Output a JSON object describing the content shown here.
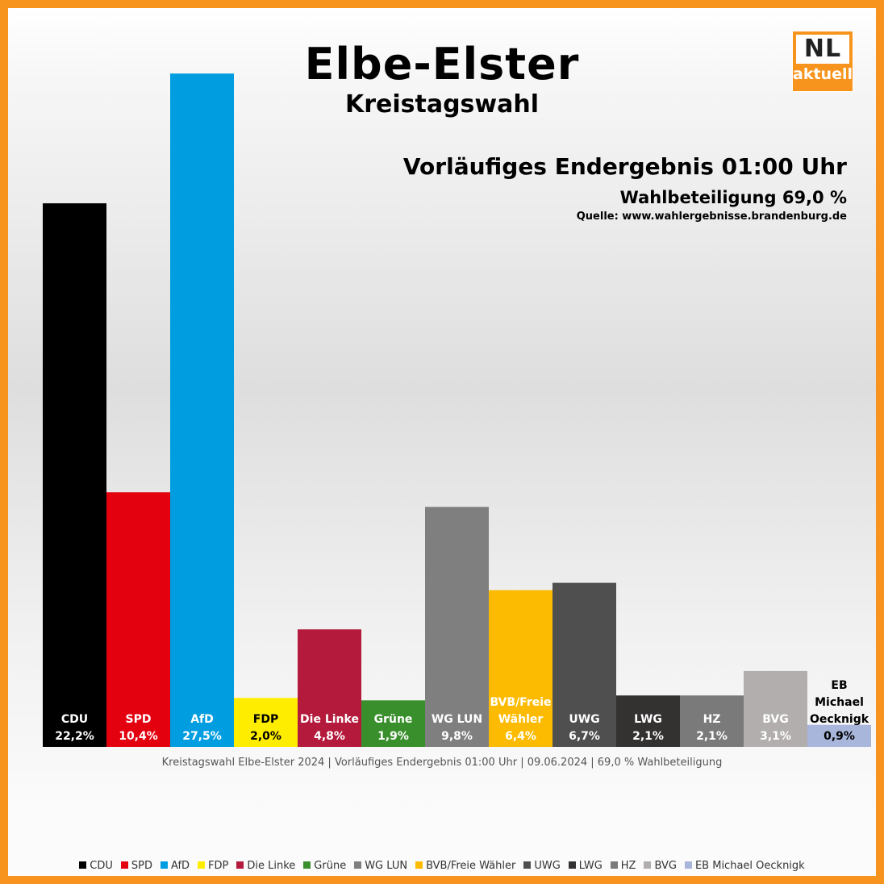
{
  "header": {
    "title": "Elbe-Elster",
    "subtitle": "Kreistagswahl",
    "result_title": "Vorläufiges Endergebnis 01:00 Uhr",
    "turnout": "Wahlbeteiligung 69,0 %",
    "source": "Quelle:  www.wahlergebnisse.brandenburg.de"
  },
  "logo": {
    "top": "NL",
    "bottom": "aktuell"
  },
  "footnote": "Kreistagswahl Elbe-Elster 2024 | Vorläufiges Endergebnis 01:00 Uhr | 09.06.2024 | 69,0 % Wahlbeteiligung",
  "chart_data": {
    "type": "bar",
    "title": "Elbe-Elster",
    "subtitle": "Kreistagswahl",
    "categories": [
      "CDU",
      "SPD",
      "AfD",
      "FDP",
      "Die Linke",
      "Grüne",
      "WG LUN",
      "BVB/Freie Wähler",
      "UWG",
      "LWG",
      "HZ",
      "BVG",
      "EB Michael Oecknigk"
    ],
    "values": [
      22.2,
      10.4,
      27.5,
      2.0,
      4.8,
      1.9,
      9.8,
      6.4,
      6.7,
      2.1,
      2.1,
      3.1,
      0.9
    ],
    "value_labels": [
      "22,2%",
      "10,4%",
      "27,5%",
      "2,0%",
      "4,8%",
      "1,9%",
      "9,8%",
      "6,4%",
      "6,7%",
      "2,1%",
      "2,1%",
      "3,1%",
      "0,9%"
    ],
    "bar_label_lines": [
      [
        "CDU"
      ],
      [
        "SPD"
      ],
      [
        "AfD"
      ],
      [
        "FDP"
      ],
      [
        "Die Linke"
      ],
      [
        "Grüne"
      ],
      [
        "WG LUN"
      ],
      [
        "BVB/Freie",
        "Wähler"
      ],
      [
        "UWG"
      ],
      [
        "LWG"
      ],
      [
        "HZ"
      ],
      [
        "BVG"
      ],
      [
        "EB",
        "Michael",
        "Oecknigk"
      ]
    ],
    "colors": [
      "#000000",
      "#E3000F",
      "#009EE0",
      "#FFED00",
      "#B41A3B",
      "#3A8F2D",
      "#7F7F7F",
      "#FCBB00",
      "#4F4F4F",
      "#343131",
      "#7A7A7A",
      "#B2AEAE",
      "#A9B6DC"
    ],
    "label_colors": [
      "#FFFFFF",
      "#FFFFFF",
      "#FFFFFF",
      "#000000",
      "#FFFFFF",
      "#FFFFFF",
      "#FFFFFF",
      "#FFFFFF",
      "#FFFFFF",
      "#FFFFFF",
      "#FFFFFF",
      "#FFFFFF",
      "#000000"
    ],
    "ylim": [
      0,
      28
    ],
    "grid": false,
    "legend_position": "bottom",
    "xlabel": "",
    "ylabel": ""
  }
}
